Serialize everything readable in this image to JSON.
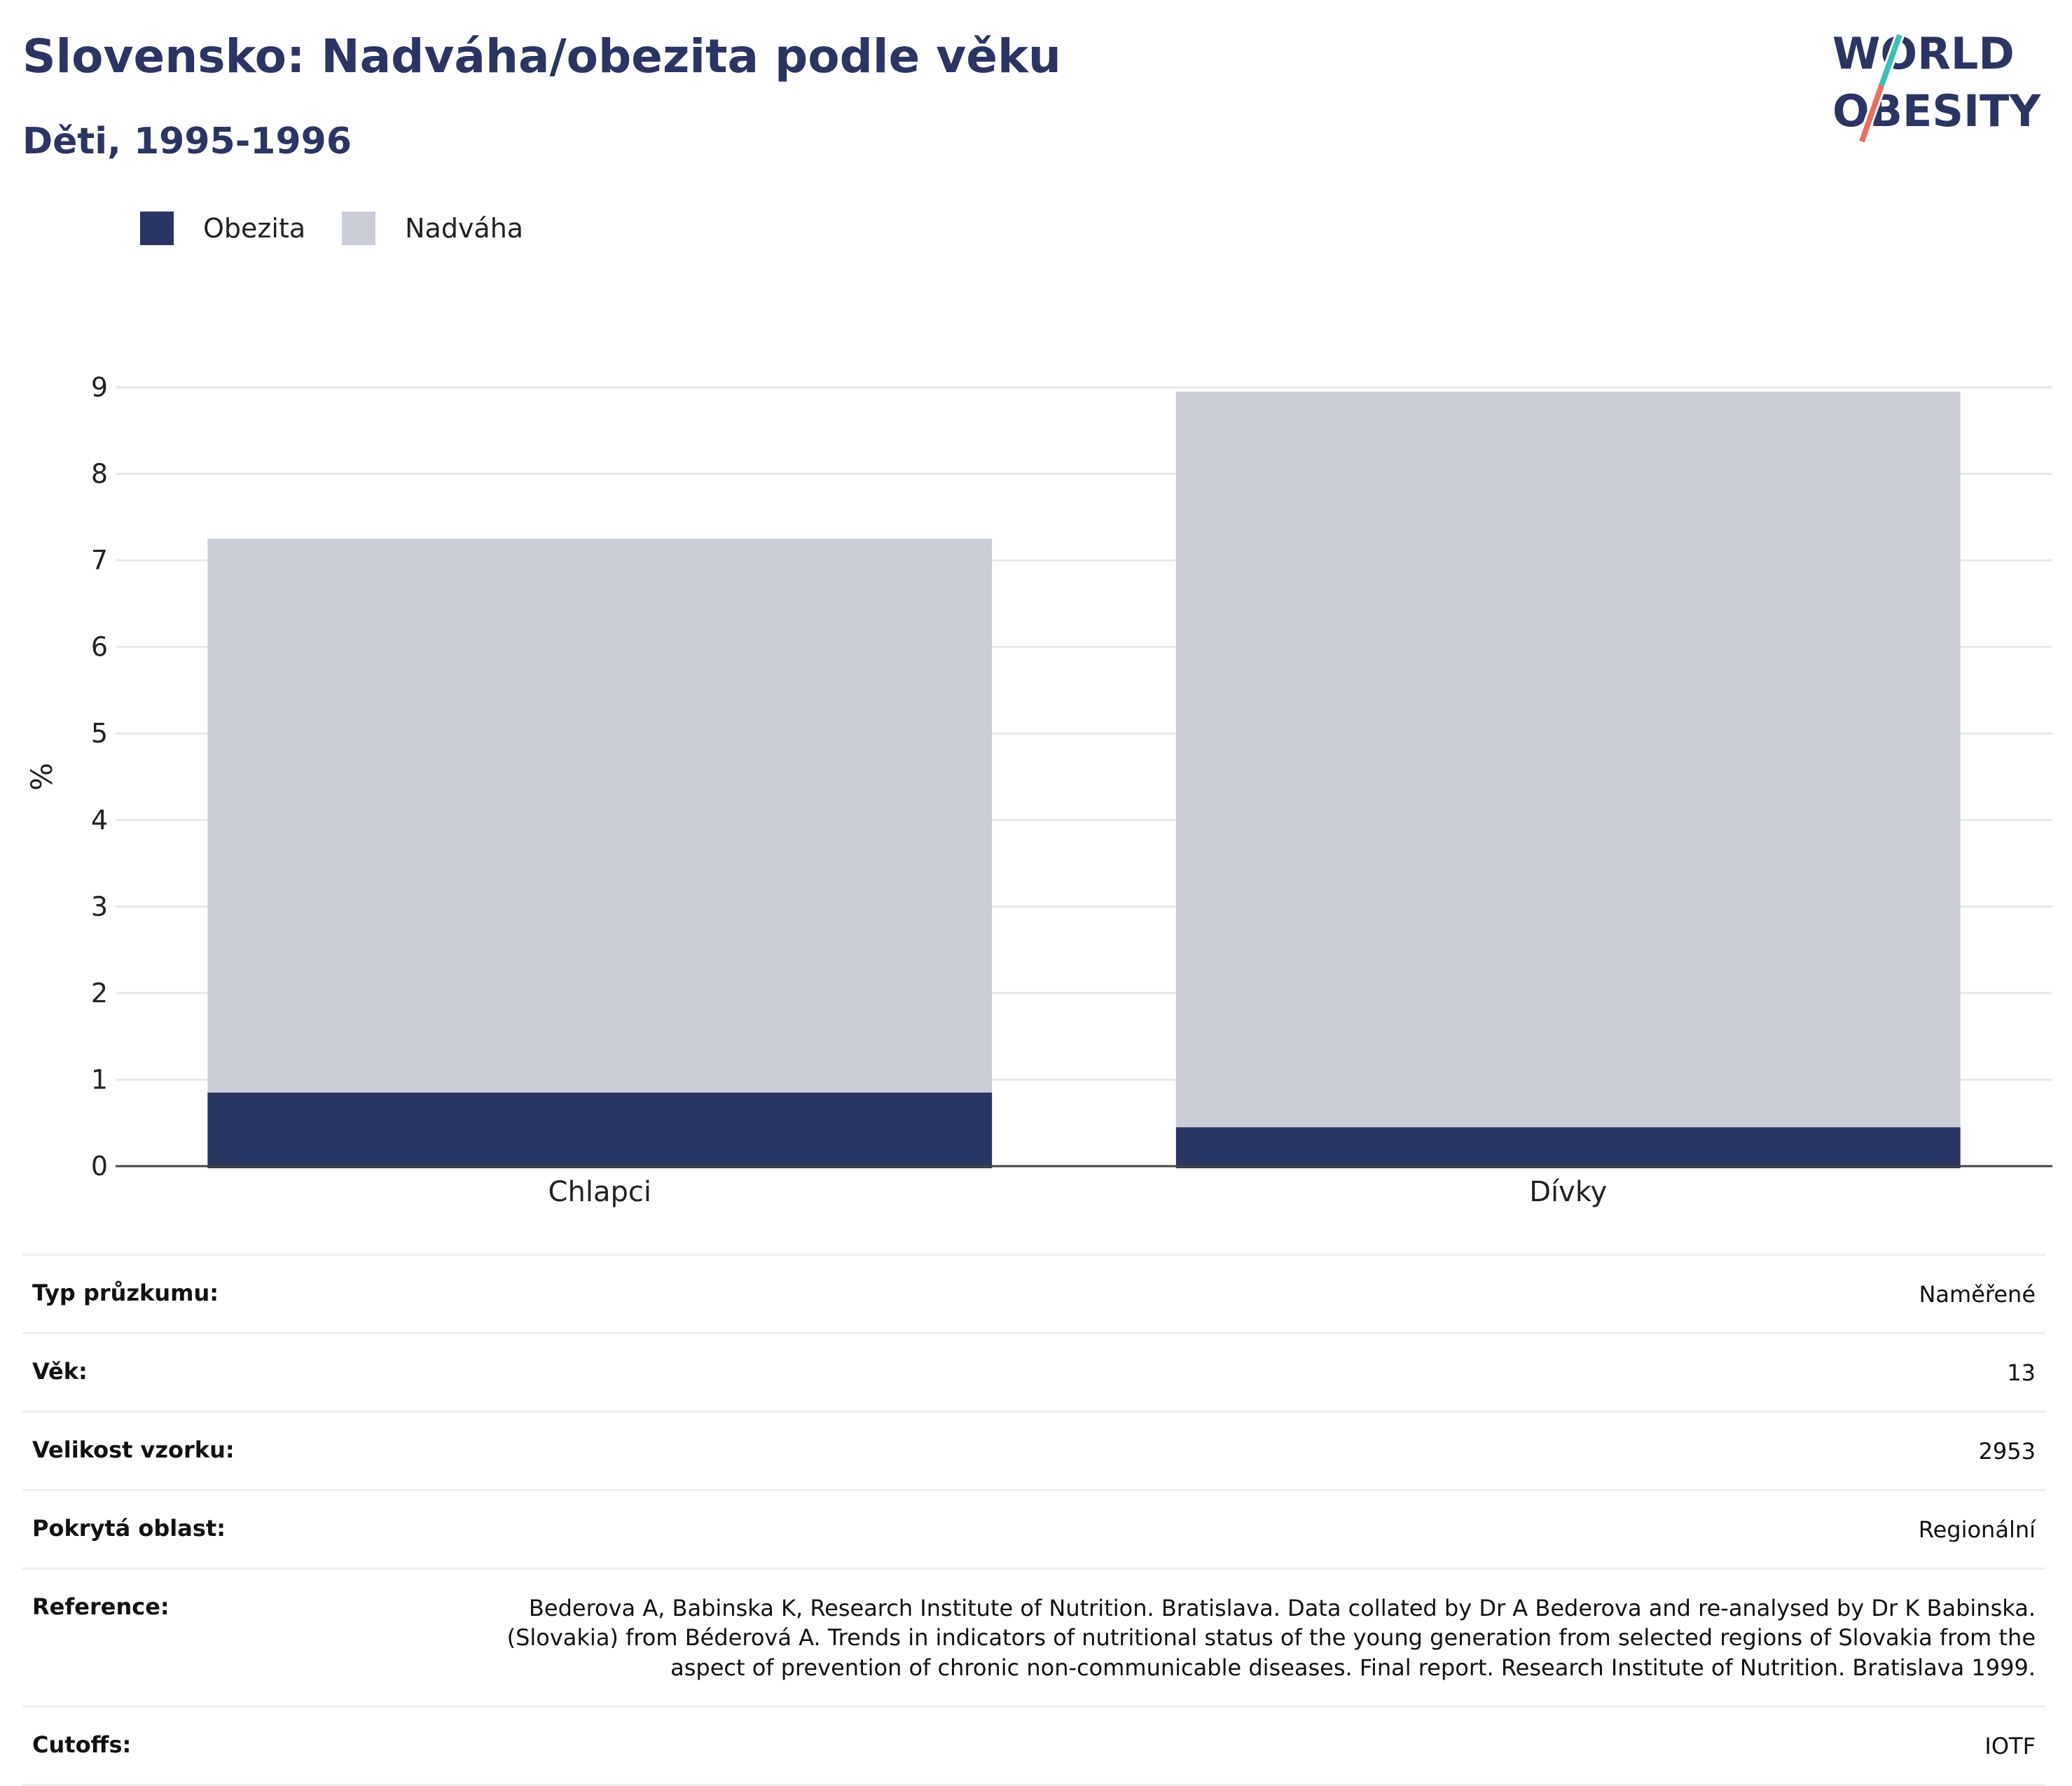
{
  "header": {
    "title": "Slovensko: Nadváha/obezita podle věku",
    "subtitle": "Děti, 1995-1996"
  },
  "logo": {
    "line1": "WORLD",
    "line2": "OBESITY",
    "colors": {
      "text": "#2b3563",
      "slash_top": "#3bbfb8",
      "slash_bottom": "#e8705f"
    }
  },
  "legend": [
    {
      "label": "Obezita",
      "color": "#2b3563"
    },
    {
      "label": "Nadváha",
      "color": "#cbcdd9"
    }
  ],
  "chart_data": {
    "type": "bar",
    "stacked": true,
    "categories": [
      "Chlapci",
      "Dívky"
    ],
    "series": [
      {
        "name": "Obezita",
        "values": [
          0.85,
          0.45
        ],
        "color": "#2b3563"
      },
      {
        "name": "Nadváha",
        "values": [
          6.4,
          8.5
        ],
        "color": "#cbcdd9"
      }
    ],
    "ylabel": "%",
    "xlabel": "",
    "ylim": [
      0,
      9
    ],
    "yticks": [
      0,
      1,
      2,
      3,
      4,
      5,
      6,
      7,
      8,
      9
    ],
    "grid": true,
    "legend_position": "top-left"
  },
  "meta": [
    {
      "label": "Typ průzkumu:",
      "value": "Naměřené"
    },
    {
      "label": "Věk:",
      "value": "13"
    },
    {
      "label": "Velikost vzorku:",
      "value": "2953"
    },
    {
      "label": "Pokrytá oblast:",
      "value": "Regionální"
    },
    {
      "label": "Reference:",
      "value": "Bederova A, Babinska K, Research Institute of Nutrition. Bratislava. Data collated by Dr A Bederova and re-analysed by Dr K Babinska. (Slovakia) from Béderová A. Trends in indicators of nutritional status of the young generation from selected regions of Slovakia from the aspect of prevention of chronic non-communicable diseases. Final report. Research Institute of Nutrition. Bratislava 1999."
    },
    {
      "label": "Cutoffs:",
      "value": "IOTF"
    }
  ]
}
